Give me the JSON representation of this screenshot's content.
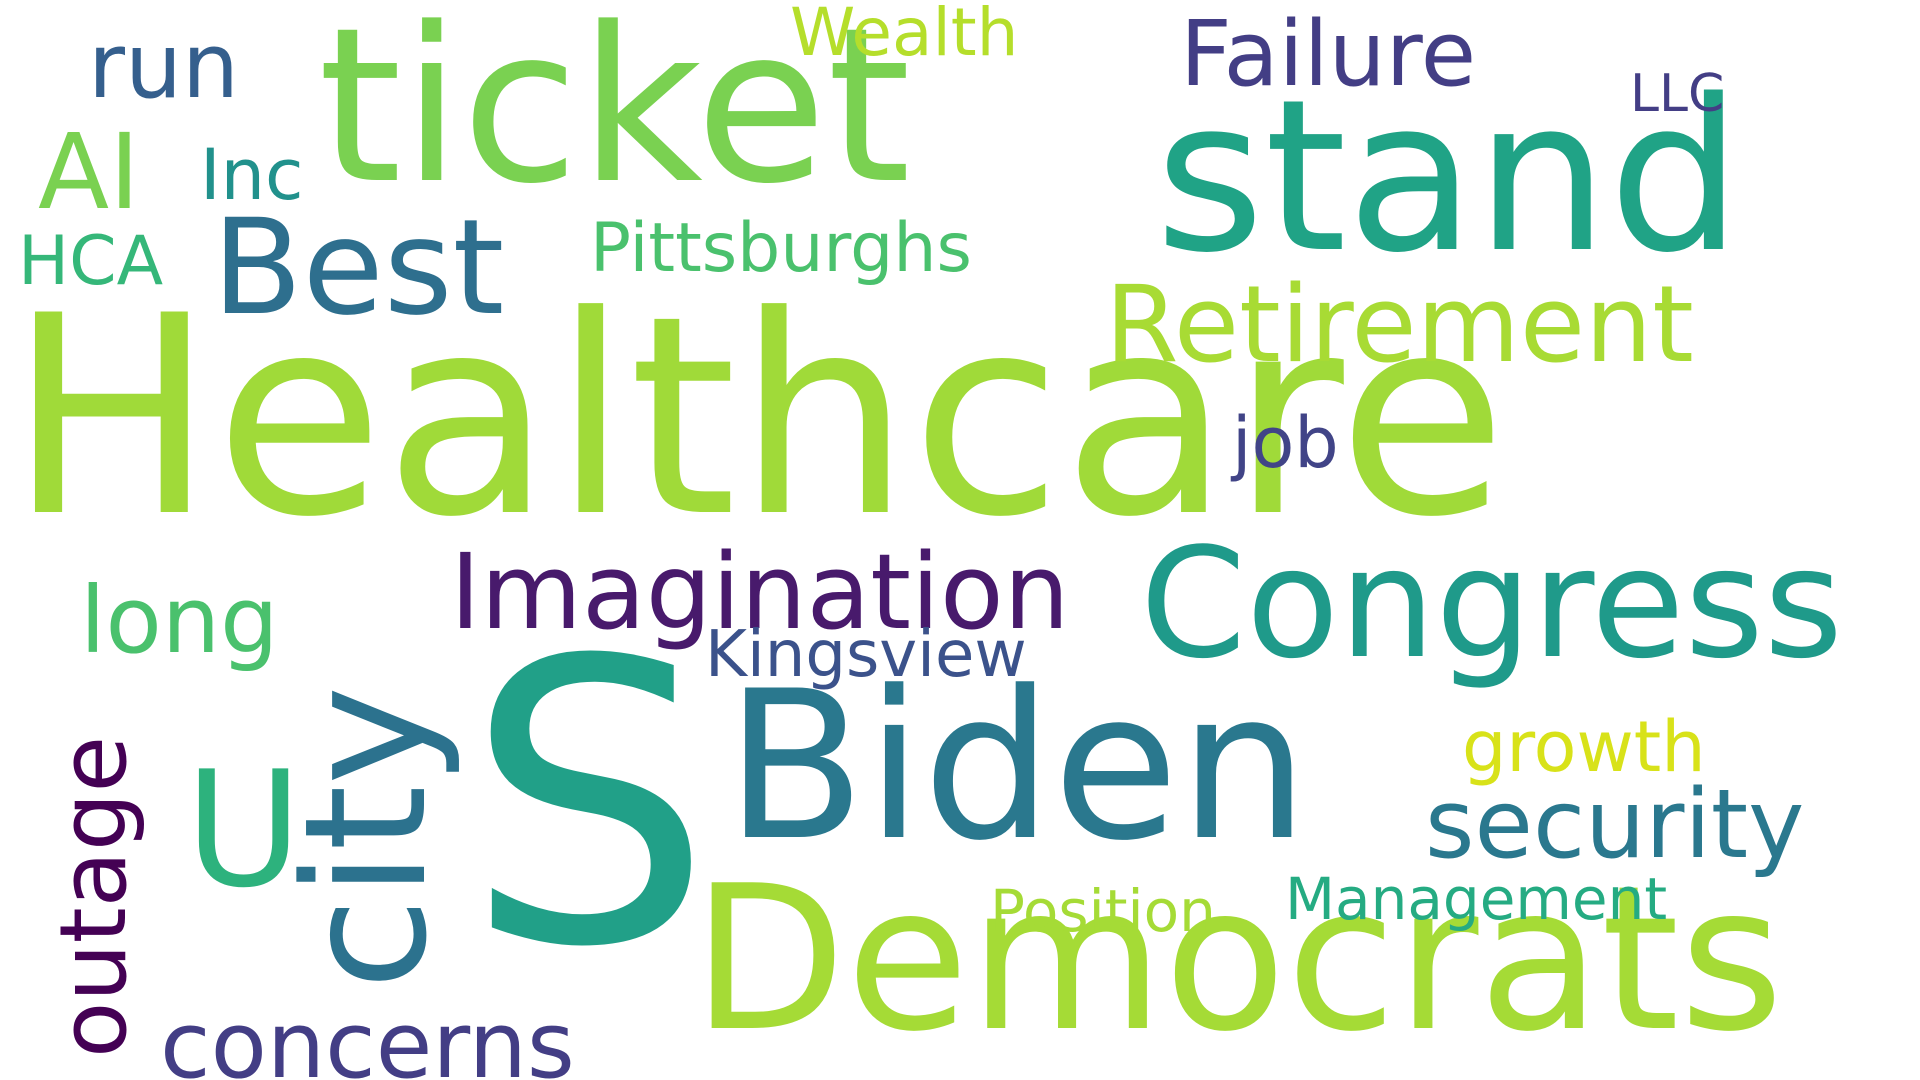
{
  "background_color": "#ffffff",
  "words": [
    {
      "id": "healthcare",
      "text": "Healthcare",
      "color": "#a0da39"
    },
    {
      "id": "s",
      "text": "S",
      "color": "#21a088"
    },
    {
      "id": "ticket",
      "text": "ticket",
      "color": "#7ad151"
    },
    {
      "id": "stand",
      "text": "stand",
      "color": "#20a386"
    },
    {
      "id": "democrats",
      "text": "Democrats",
      "color": "#a5db36"
    },
    {
      "id": "biden",
      "text": "Biden",
      "color": "#2a788e"
    },
    {
      "id": "congress",
      "text": "Congress",
      "color": "#1f9a8a"
    },
    {
      "id": "city",
      "text": "city",
      "color": "#2c728e"
    },
    {
      "id": "u",
      "text": "U",
      "color": "#2db27d"
    },
    {
      "id": "best",
      "text": "Best",
      "color": "#2e6f8e"
    },
    {
      "id": "retirement",
      "text": "Retirement",
      "color": "#a8db34"
    },
    {
      "id": "imagination",
      "text": "Imagination",
      "color": "#481a6c"
    },
    {
      "id": "security",
      "text": "security",
      "color": "#2a788e"
    },
    {
      "id": "concerns",
      "text": "concerns",
      "color": "#433e85"
    },
    {
      "id": "outage",
      "text": "outage",
      "color": "#440154"
    },
    {
      "id": "failure",
      "text": "Failure",
      "color": "#433e85"
    },
    {
      "id": "ai",
      "text": "AI",
      "color": "#7ad151"
    },
    {
      "id": "long",
      "text": "long",
      "color": "#4ac16d"
    },
    {
      "id": "run",
      "text": "run",
      "color": "#355f8d"
    },
    {
      "id": "job",
      "text": "job",
      "color": "#414487"
    },
    {
      "id": "pittsburghs",
      "text": "Pittsburghs",
      "color": "#4ac16d"
    },
    {
      "id": "kingsview",
      "text": "Kingsview",
      "color": "#3b528b"
    },
    {
      "id": "growth",
      "text": "growth",
      "color": "#d8e219"
    },
    {
      "id": "management",
      "text": "Management",
      "color": "#25ab82"
    },
    {
      "id": "position",
      "text": "Position",
      "color": "#a5db36"
    },
    {
      "id": "wealth",
      "text": "Wealth",
      "color": "#b5de2b"
    },
    {
      "id": "inc",
      "text": "Inc",
      "color": "#21918c"
    },
    {
      "id": "hca",
      "text": "HCA",
      "color": "#35b779"
    },
    {
      "id": "llc",
      "text": "LLC",
      "color": "#433e85"
    }
  ]
}
